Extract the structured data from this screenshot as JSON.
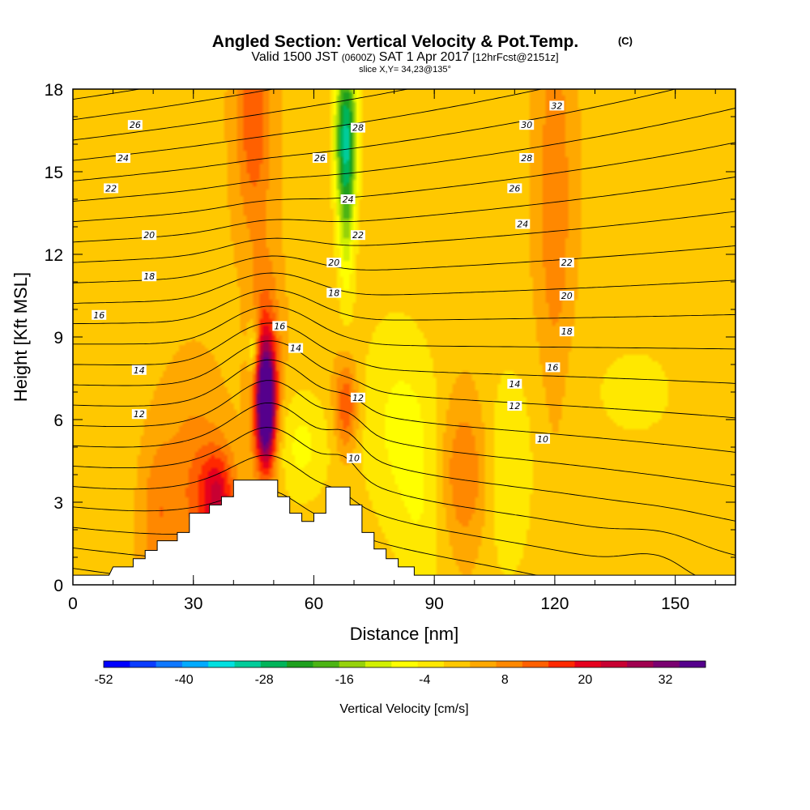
{
  "title": {
    "main": "Angled Section: Vertical Velocity & Pot.Temp.",
    "main_suffix": "(C)",
    "valid_prefix": "Valid 1500 JST",
    "valid_utc": "(0600Z)",
    "valid_date": "SAT 1 Apr 2017",
    "forecast": "[12hrFcst@2151z]",
    "slice": "slice X,Y= 34,23@135°"
  },
  "chart_data": {
    "type": "heatmap",
    "xlabel": "Distance [nm]",
    "ylabel": "Height [Kft MSL]",
    "xlim": [
      0,
      165
    ],
    "ylim": [
      0,
      18
    ],
    "x_ticks": [
      "0",
      "30",
      "60",
      "90",
      "120",
      "150"
    ],
    "y_ticks": [
      "0",
      "3",
      "6",
      "9",
      "12",
      "15",
      "18"
    ],
    "colorbar": {
      "label": "Vertical Velocity [cm/s]",
      "tick_labels": [
        "-52",
        "-40",
        "-28",
        "-16",
        "-4",
        "8",
        "20",
        "32"
      ],
      "min": -52,
      "max": 38,
      "colors": [
        "#0000ff",
        "#0a3cff",
        "#0f78ff",
        "#00aaff",
        "#00e0e0",
        "#00cc9a",
        "#00b45a",
        "#1ea01e",
        "#4cb414",
        "#96d20a",
        "#d2f000",
        "#ffff00",
        "#ffe800",
        "#ffc800",
        "#ffa800",
        "#ff8800",
        "#ff6000",
        "#ff2800",
        "#e6001e",
        "#c80032",
        "#a00050",
        "#7a0070",
        "#55008c"
      ]
    },
    "background_level": 2,
    "velocity_features": [
      {
        "x": 48,
        "y": 6.5,
        "sx": 1.6,
        "sy": 1.4,
        "value": 40
      },
      {
        "x": 48,
        "y": 7.5,
        "sx": 2.4,
        "sy": 2.6,
        "value": 16
      },
      {
        "x": 36,
        "y": 3.2,
        "sx": 3,
        "sy": 1.2,
        "value": 18
      },
      {
        "x": 30,
        "y": 3.5,
        "sx": 5,
        "sy": 2.5,
        "value": 8
      },
      {
        "x": 21,
        "y": 2.5,
        "sx": 3,
        "sy": 2,
        "value": 7
      },
      {
        "x": 45,
        "y": 17,
        "sx": 3,
        "sy": 3,
        "value": 12
      },
      {
        "x": 68,
        "y": 6.5,
        "sx": 2,
        "sy": 1.2,
        "value": 14
      },
      {
        "x": 68,
        "y": 16.5,
        "sx": 2,
        "sy": 2,
        "value": -26
      },
      {
        "x": 68,
        "y": 13.5,
        "sx": 1.6,
        "sy": 2.5,
        "value": -12
      },
      {
        "x": 45,
        "y": 8.5,
        "sx": 1,
        "sy": 0.8,
        "value": -12
      },
      {
        "x": 57,
        "y": 5,
        "sx": 5,
        "sy": 1.5,
        "value": -8
      },
      {
        "x": 80,
        "y": 6,
        "sx": 7,
        "sy": 3,
        "value": -7
      },
      {
        "x": 88,
        "y": 3,
        "sx": 5,
        "sy": 3,
        "value": -6
      },
      {
        "x": 97,
        "y": 4,
        "sx": 5,
        "sy": 2,
        "value": 10
      },
      {
        "x": 108,
        "y": 4,
        "sx": 5,
        "sy": 3,
        "value": -7
      },
      {
        "x": 120,
        "y": 14,
        "sx": 3,
        "sy": 5,
        "value": 8
      },
      {
        "x": 140,
        "y": 7,
        "sx": 12,
        "sy": 2,
        "value": -4
      },
      {
        "x": 10,
        "y": 9,
        "sx": 5,
        "sy": 5,
        "value": -2
      }
    ],
    "terrain_profile": [
      [
        0,
        0.35
      ],
      [
        9,
        0.35
      ],
      [
        10,
        0.65
      ],
      [
        15,
        0.65
      ],
      [
        15,
        0.95
      ],
      [
        18,
        0.95
      ],
      [
        18,
        1.25
      ],
      [
        21,
        1.25
      ],
      [
        21,
        1.6
      ],
      [
        26,
        1.6
      ],
      [
        26,
        1.9
      ],
      [
        29,
        1.9
      ],
      [
        29,
        2.6
      ],
      [
        34,
        2.6
      ],
      [
        34,
        2.9
      ],
      [
        37,
        2.9
      ],
      [
        37,
        3.2
      ],
      [
        40,
        3.2
      ],
      [
        40,
        3.8
      ],
      [
        48,
        3.8
      ],
      [
        51,
        3.8
      ],
      [
        51,
        3.2
      ],
      [
        54,
        3.2
      ],
      [
        54,
        2.6
      ],
      [
        57,
        2.6
      ],
      [
        57,
        2.3
      ],
      [
        60,
        2.3
      ],
      [
        60,
        2.6
      ],
      [
        63,
        2.6
      ],
      [
        63,
        3.55
      ],
      [
        69,
        3.55
      ],
      [
        69,
        2.9
      ],
      [
        72,
        2.9
      ],
      [
        72,
        1.9
      ],
      [
        75,
        1.9
      ],
      [
        75,
        1.3
      ],
      [
        78,
        1.3
      ],
      [
        78,
        0.95
      ],
      [
        81,
        0.95
      ],
      [
        81,
        0.65
      ],
      [
        85,
        0.65
      ],
      [
        85,
        0.35
      ],
      [
        165,
        0.35
      ]
    ],
    "contour_interval": 1,
    "contour_labels": [
      {
        "text": "26",
        "x": 15.5,
        "y": 16.7
      },
      {
        "text": "24",
        "x": 12.5,
        "y": 15.5
      },
      {
        "text": "22",
        "x": 9.5,
        "y": 14.4
      },
      {
        "text": "20",
        "x": 19,
        "y": 12.7
      },
      {
        "text": "18",
        "x": 19,
        "y": 11.2
      },
      {
        "text": "16",
        "x": 6.5,
        "y": 9.8
      },
      {
        "text": "14",
        "x": 16.5,
        "y": 7.8
      },
      {
        "text": "12",
        "x": 16.5,
        "y": 6.2
      },
      {
        "text": "16",
        "x": 51.5,
        "y": 9.4
      },
      {
        "text": "14",
        "x": 55.5,
        "y": 8.6
      },
      {
        "text": "26",
        "x": 61.5,
        "y": 15.5
      },
      {
        "text": "28",
        "x": 71,
        "y": 16.6
      },
      {
        "text": "24",
        "x": 68.5,
        "y": 14
      },
      {
        "text": "22",
        "x": 71,
        "y": 12.7
      },
      {
        "text": "20",
        "x": 65,
        "y": 11.7
      },
      {
        "text": "18",
        "x": 65,
        "y": 10.6
      },
      {
        "text": "12",
        "x": 71,
        "y": 6.8
      },
      {
        "text": "10",
        "x": 70,
        "y": 4.6
      },
      {
        "text": "32",
        "x": 120.5,
        "y": 17.4
      },
      {
        "text": "30",
        "x": 113,
        "y": 16.7
      },
      {
        "text": "28",
        "x": 113,
        "y": 15.5
      },
      {
        "text": "26",
        "x": 110,
        "y": 14.4
      },
      {
        "text": "24",
        "x": 112,
        "y": 13.1
      },
      {
        "text": "22",
        "x": 123,
        "y": 11.7
      },
      {
        "text": "20",
        "x": 123,
        "y": 10.5
      },
      {
        "text": "18",
        "x": 123,
        "y": 9.2
      },
      {
        "text": "16",
        "x": 119.5,
        "y": 7.9
      },
      {
        "text": "14",
        "x": 110,
        "y": 7.3
      },
      {
        "text": "12",
        "x": 110,
        "y": 6.5
      },
      {
        "text": "10",
        "x": 117,
        "y": 5.3
      }
    ]
  }
}
